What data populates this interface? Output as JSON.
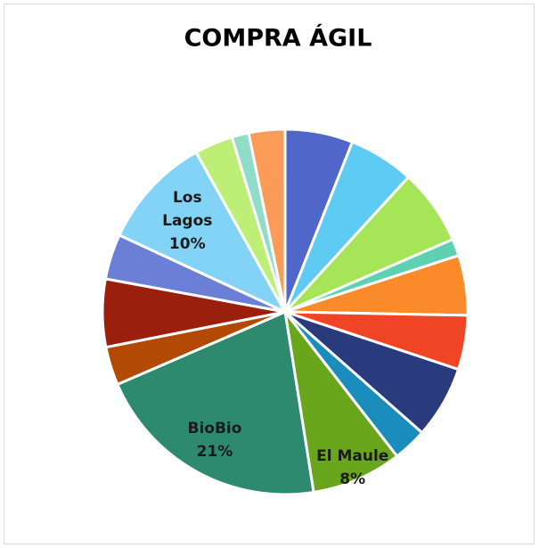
{
  "chart_data": {
    "type": "pie",
    "title": "COMPRA ÁGIL",
    "categories": [
      null,
      null,
      null,
      null,
      null,
      null,
      null,
      null,
      "El Maule",
      "BioBio",
      null,
      null,
      null,
      "Los Lagos",
      null,
      null,
      null
    ],
    "values": [
      6,
      5.8,
      6.7,
      1.5,
      5.3,
      4.8,
      6.4,
      3,
      8,
      21,
      3.4,
      6,
      4,
      10,
      3.4,
      1.5,
      3.2
    ],
    "value_labels": [
      null,
      null,
      null,
      null,
      null,
      null,
      null,
      null,
      "8%",
      "21%",
      null,
      null,
      null,
      "10%",
      null,
      null,
      null
    ],
    "colors": [
      "#5066c9",
      "#5ecbf3",
      "#a6e557",
      "#5fd1b3",
      "#fb8a2a",
      "#ef4426",
      "#293a7d",
      "#1b8dbd",
      "#6aa61b",
      "#2e8a6e",
      "#b24a04",
      "#9a1f0c",
      "#6c7fd6",
      "#82d3f5",
      "#bdee75",
      "#8fdcc8",
      "#fb9b58"
    ]
  }
}
